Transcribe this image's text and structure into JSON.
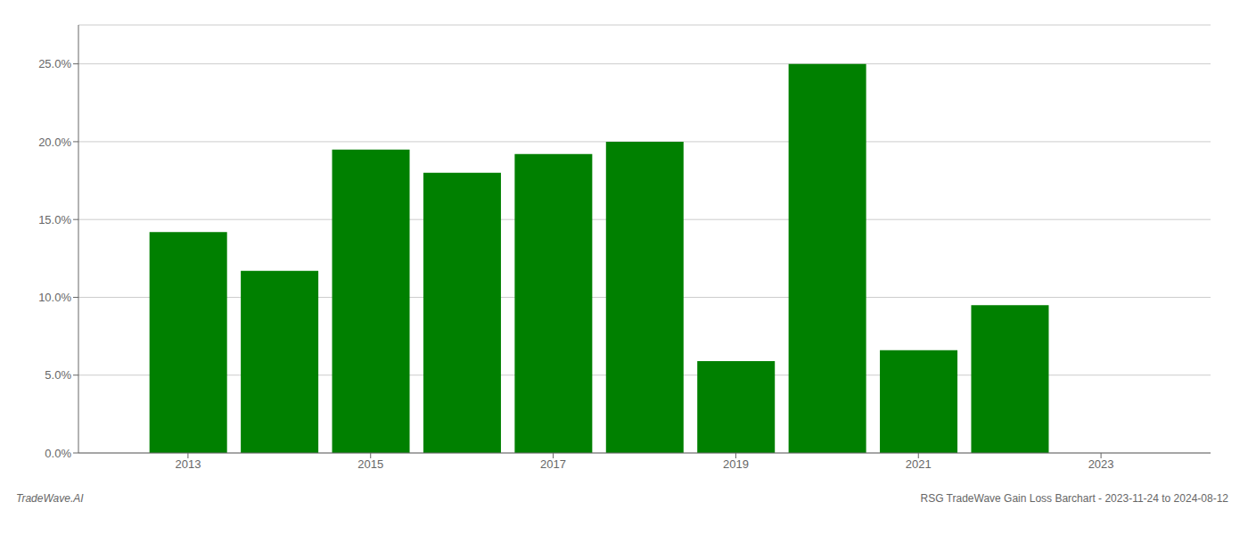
{
  "chart_data": {
    "type": "bar",
    "x": [
      2013,
      2014,
      2015,
      2016,
      2017,
      2018,
      2019,
      2020,
      2021,
      2022
    ],
    "values": [
      0.142,
      0.117,
      0.195,
      0.18,
      0.192,
      0.2,
      0.059,
      0.25,
      0.066,
      0.095
    ],
    "color": "#008000",
    "xlim": [
      2011.8,
      2024.2
    ],
    "xticks": [
      2013,
      2015,
      2017,
      2019,
      2021,
      2023
    ],
    "ylim": [
      0,
      0.275
    ],
    "yticks": [
      {
        "value": 0,
        "label": "0.0%"
      },
      {
        "value": 0.05,
        "label": "5.0%"
      },
      {
        "value": 0.1,
        "label": "10.0%"
      },
      {
        "value": 0.15,
        "label": "15.0%"
      },
      {
        "value": 0.2,
        "label": "20.0%"
      },
      {
        "value": 0.25,
        "label": "25.0%"
      }
    ],
    "grid": true,
    "annotations": [
      "TradeWave.AI",
      "RSG TradeWave Gain Loss Barchart - 2023-11-24 to 2024-08-12"
    ]
  }
}
